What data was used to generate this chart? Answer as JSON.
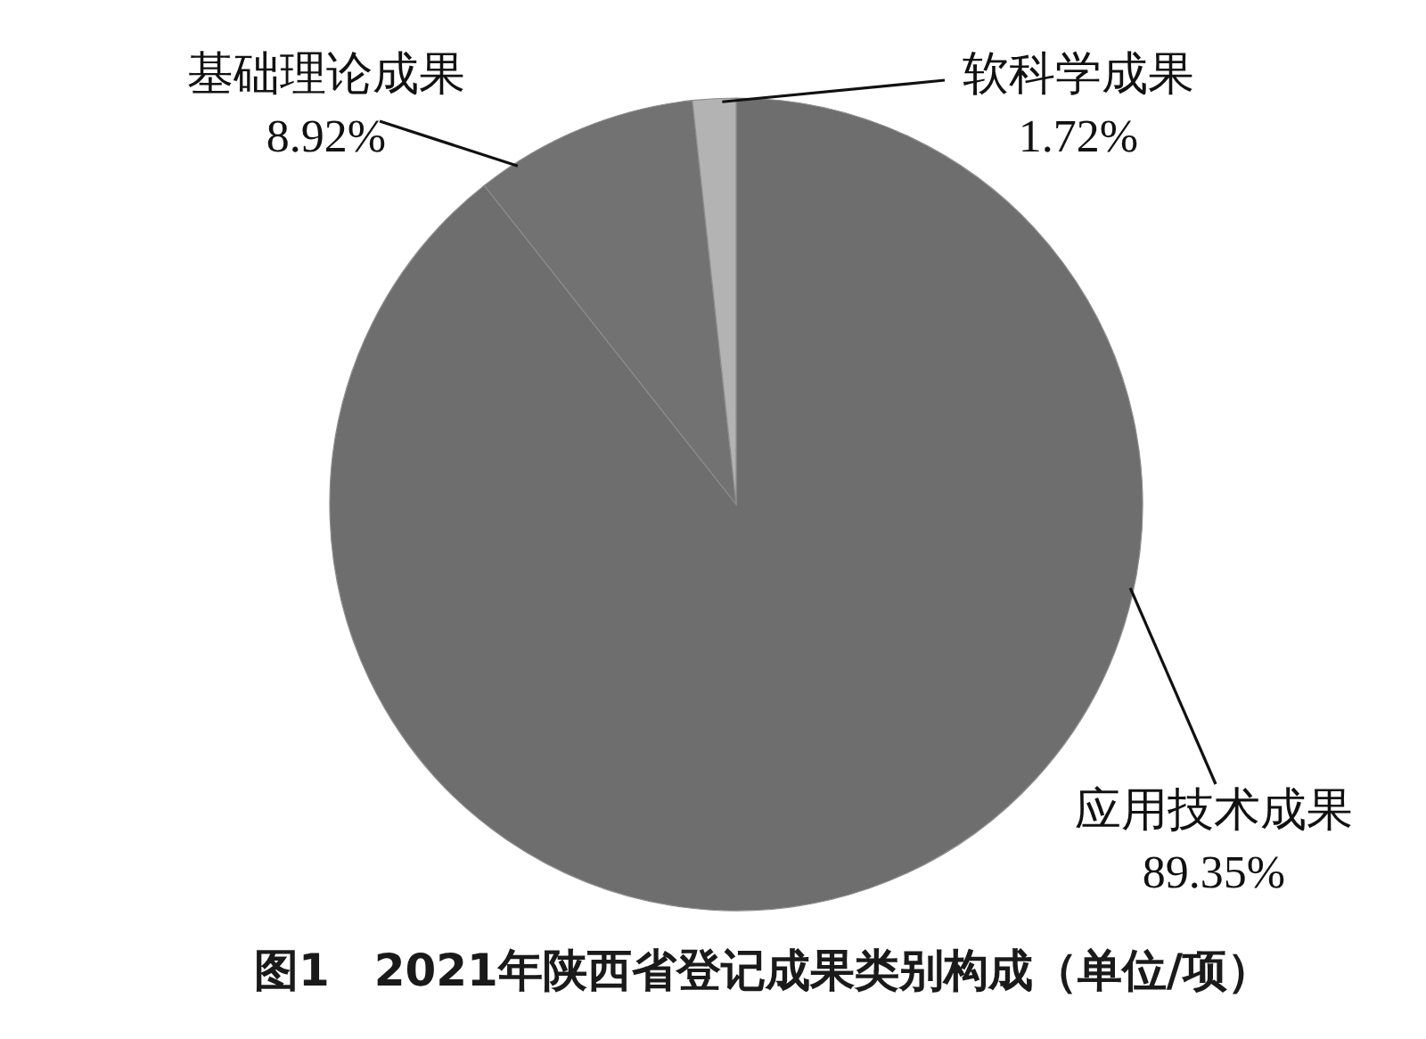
{
  "chart_data": {
    "type": "pie",
    "title": "图1　2021年陕西省登记成果类别构成（单位/项）",
    "categories": [
      "应用技术成果",
      "基础理论成果",
      "软科学成果"
    ],
    "values": [
      89.35,
      8.92,
      1.72
    ],
    "colors": [
      "#6e6e6e",
      "#727272",
      "#b3b3b3"
    ],
    "value_labels": [
      "89.35%",
      "8.92%",
      "1.72%"
    ]
  }
}
